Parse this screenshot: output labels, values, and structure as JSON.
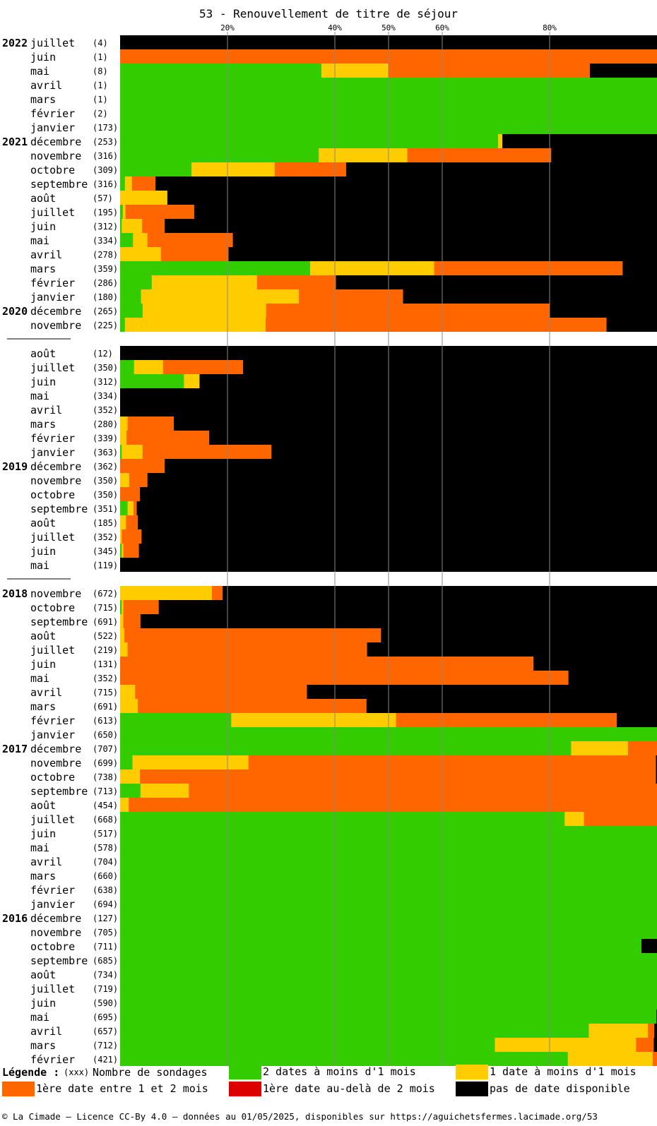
{
  "chart_data": {
    "type": "bar",
    "orientation": "horizontal-stacked-100",
    "title": "53 - Renouvellement de titre de séjour",
    "x_ticks": [
      "20%",
      "40%",
      "50%",
      "60%",
      "80%"
    ],
    "x_tick_values": [
      20,
      40,
      50,
      60,
      80
    ],
    "xlim": [
      0,
      100
    ],
    "colors": {
      "green": "#33cc00",
      "yellow": "#ffcc00",
      "orange": "#ff6600",
      "red": "#dd0000",
      "black": "#000000"
    },
    "series_order": [
      "green",
      "yellow",
      "orange",
      "red",
      "black"
    ],
    "groups": [
      {
        "rows": [
          {
            "year": "2022",
            "month": "juillet",
            "count": "(4)",
            "values": [
              0,
              0,
              0,
              0,
              100
            ]
          },
          {
            "year": "",
            "month": "juin",
            "count": "(1)",
            "values": [
              0,
              0,
              100,
              0,
              0
            ]
          },
          {
            "year": "",
            "month": "mai",
            "count": "(8)",
            "values": [
              37.5,
              12.5,
              37.5,
              0,
              12.5
            ]
          },
          {
            "year": "",
            "month": "avril",
            "count": "(1)",
            "values": [
              100,
              0,
              0,
              0,
              0
            ]
          },
          {
            "year": "",
            "month": "mars",
            "count": "(1)",
            "values": [
              100,
              0,
              0,
              0,
              0
            ]
          },
          {
            "year": "",
            "month": "février",
            "count": "(2)",
            "values": [
              100,
              0,
              0,
              0,
              0
            ]
          },
          {
            "year": "",
            "month": "janvier",
            "count": "(173)",
            "values": [
              100,
              0,
              0,
              0,
              0
            ]
          },
          {
            "year": "2021",
            "month": "décembre",
            "count": "(253)",
            "values": [
              70.4,
              0.8,
              0,
              0,
              28.8
            ]
          },
          {
            "year": "",
            "month": "novembre",
            "count": "(316)",
            "values": [
              37,
              16.5,
              26.8,
              0,
              19.7
            ]
          },
          {
            "year": "",
            "month": "octobre",
            "count": "(309)",
            "values": [
              13.3,
              15.5,
              13.3,
              0,
              57.9
            ]
          },
          {
            "year": "",
            "month": "septembre",
            "count": "(316)",
            "values": [
              0.9,
              1.3,
              4.4,
              0,
              93.4
            ]
          },
          {
            "year": "",
            "month": "août",
            "count": "(57)",
            "values": [
              0,
              8.8,
              0,
              0,
              91.2
            ]
          },
          {
            "year": "",
            "month": "juillet",
            "count": "(195)",
            "values": [
              0.5,
              0.5,
              12.8,
              0,
              86.2
            ]
          },
          {
            "year": "",
            "month": "juin",
            "count": "(312)",
            "values": [
              0.3,
              3.8,
              4.2,
              0,
              91.7
            ]
          },
          {
            "year": "",
            "month": "mai",
            "count": "(334)",
            "values": [
              2.4,
              2.7,
              15.9,
              0,
              79
            ]
          },
          {
            "year": "",
            "month": "avril",
            "count": "(278)",
            "values": [
              0,
              7.6,
              12.6,
              0,
              79.8
            ]
          },
          {
            "year": "",
            "month": "mars",
            "count": "(359)",
            "values": [
              35.4,
              23.1,
              35.1,
              0,
              6.4
            ]
          },
          {
            "year": "",
            "month": "février",
            "count": "(286)",
            "values": [
              5.9,
              19.6,
              14.7,
              0,
              59.8
            ]
          },
          {
            "year": "",
            "month": "janvier",
            "count": "(180)",
            "values": [
              3.9,
              29.4,
              19.4,
              0,
              47.3
            ]
          },
          {
            "year": "2020",
            "month": "décembre",
            "count": "(265)",
            "values": [
              4.2,
              23,
              52.8,
              0,
              20
            ]
          },
          {
            "year": "",
            "month": "novembre",
            "count": "(225)",
            "values": [
              0.9,
              26.2,
              63.5,
              0,
              9.4
            ]
          }
        ]
      },
      {
        "rows": [
          {
            "year": "",
            "month": "août",
            "count": "(12)",
            "values": [
              0,
              0,
              0,
              0,
              100
            ]
          },
          {
            "year": "",
            "month": "juillet",
            "count": "(350)",
            "values": [
              2.6,
              5.4,
              14.9,
              0,
              77.1
            ]
          },
          {
            "year": "",
            "month": "juin",
            "count": "(312)",
            "values": [
              11.9,
              2.9,
              0,
              0,
              85.2
            ]
          },
          {
            "year": "",
            "month": "mai",
            "count": "(334)",
            "values": [
              0,
              0,
              0,
              0,
              100
            ]
          },
          {
            "year": "",
            "month": "avril",
            "count": "(352)",
            "values": [
              0,
              0,
              0,
              0,
              100
            ]
          },
          {
            "year": "",
            "month": "mars",
            "count": "(280)",
            "values": [
              0,
              1.4,
              8.6,
              0,
              90
            ]
          },
          {
            "year": "",
            "month": "février",
            "count": "(339)",
            "values": [
              0,
              1.2,
              15.4,
              0,
              83.4
            ]
          },
          {
            "year": "",
            "month": "janvier",
            "count": "(363)",
            "values": [
              0.3,
              3.9,
              24,
              0,
              71.8
            ]
          },
          {
            "year": "2019",
            "month": "décembre",
            "count": "(362)",
            "values": [
              0,
              0,
              8.3,
              0,
              91.7
            ]
          },
          {
            "year": "",
            "month": "novembre",
            "count": "(350)",
            "values": [
              0,
              1.7,
              3.4,
              0,
              94.9
            ]
          },
          {
            "year": "",
            "month": "octobre",
            "count": "(350)",
            "values": [
              0,
              0,
              3.7,
              0,
              96.3
            ]
          },
          {
            "year": "",
            "month": "septembre",
            "count": "(351)",
            "values": [
              1.4,
              1.1,
              0.6,
              0,
              96.9
            ]
          },
          {
            "year": "",
            "month": "août",
            "count": "(185)",
            "values": [
              0,
              1.1,
              2.2,
              0,
              96.7
            ]
          },
          {
            "year": "",
            "month": "juillet",
            "count": "(352)",
            "values": [
              0,
              0.3,
              3.7,
              0,
              96
            ]
          },
          {
            "year": "",
            "month": "juin",
            "count": "(345)",
            "values": [
              0.3,
              0.3,
              2.9,
              0,
              96.5
            ]
          },
          {
            "year": "",
            "month": "mai",
            "count": "(119)",
            "values": [
              0,
              0,
              0,
              0,
              100
            ]
          }
        ]
      },
      {
        "rows": [
          {
            "year": "2018",
            "month": "novembre",
            "count": "(672)",
            "values": [
              0,
              17.1,
              2,
              0,
              80.9
            ]
          },
          {
            "year": "",
            "month": "octobre",
            "count": "(715)",
            "values": [
              0.3,
              0.3,
              6.6,
              0,
              92.8
            ]
          },
          {
            "year": "",
            "month": "septembre",
            "count": "(691)",
            "values": [
              0,
              0.6,
              3.2,
              0,
              96.2
            ]
          },
          {
            "year": "",
            "month": "août",
            "count": "(522)",
            "values": [
              0,
              0.8,
              47.8,
              0,
              51.4
            ]
          },
          {
            "year": "",
            "month": "juillet",
            "count": "(219)",
            "values": [
              0,
              1.4,
              44.6,
              0,
              54
            ]
          },
          {
            "year": "",
            "month": "juin",
            "count": "(131)",
            "values": [
              0,
              0,
              77,
              0,
              23
            ]
          },
          {
            "year": "",
            "month": "mai",
            "count": "(352)",
            "values": [
              0,
              0,
              83.5,
              0,
              16.5
            ]
          },
          {
            "year": "",
            "month": "avril",
            "count": "(715)",
            "values": [
              0,
              2.8,
              32,
              0,
              65.2
            ]
          },
          {
            "year": "",
            "month": "mars",
            "count": "(691)",
            "values": [
              0,
              3.3,
              42.6,
              0,
              54.1
            ]
          },
          {
            "year": "",
            "month": "février",
            "count": "(613)",
            "values": [
              20.7,
              30.7,
              41.1,
              0,
              7.5
            ]
          },
          {
            "year": "",
            "month": "janvier",
            "count": "(650)",
            "values": [
              100,
              0,
              0,
              0,
              0
            ]
          },
          {
            "year": "2017",
            "month": "décembre",
            "count": "(707)",
            "values": [
              84,
              10.6,
              5.4,
              0,
              0
            ]
          },
          {
            "year": "",
            "month": "novembre",
            "count": "(699)",
            "values": [
              2.3,
              21.6,
              75.9,
              0,
              0.2
            ]
          },
          {
            "year": "",
            "month": "octobre",
            "count": "(738)",
            "values": [
              0,
              3.7,
              96.1,
              0,
              0.2
            ]
          },
          {
            "year": "",
            "month": "septembre",
            "count": "(713)",
            "values": [
              3.8,
              9,
              87.2,
              0,
              0
            ]
          },
          {
            "year": "",
            "month": "août",
            "count": "(454)",
            "values": [
              0,
              1.6,
              98.4,
              0,
              0
            ]
          },
          {
            "year": "",
            "month": "juillet",
            "count": "(668)",
            "values": [
              82.8,
              3.6,
              13.6,
              0,
              0
            ]
          },
          {
            "year": "",
            "month": "juin",
            "count": "(517)",
            "values": [
              100,
              0,
              0,
              0,
              0
            ]
          },
          {
            "year": "",
            "month": "mai",
            "count": "(578)",
            "values": [
              100,
              0,
              0,
              0,
              0
            ]
          },
          {
            "year": "",
            "month": "avril",
            "count": "(704)",
            "values": [
              100,
              0,
              0,
              0,
              0
            ]
          },
          {
            "year": "",
            "month": "mars",
            "count": "(660)",
            "values": [
              100,
              0,
              0,
              0,
              0
            ]
          },
          {
            "year": "",
            "month": "février",
            "count": "(638)",
            "values": [
              100,
              0,
              0,
              0,
              0
            ]
          },
          {
            "year": "",
            "month": "janvier",
            "count": "(694)",
            "values": [
              100,
              0,
              0,
              0,
              0
            ]
          },
          {
            "year": "2016",
            "month": "décembre",
            "count": "(127)",
            "values": [
              100,
              0,
              0,
              0,
              0
            ]
          },
          {
            "year": "",
            "month": "novembre",
            "count": "(705)",
            "values": [
              100,
              0,
              0,
              0,
              0
            ]
          },
          {
            "year": "",
            "month": "octobre",
            "count": "(711)",
            "values": [
              97.1,
              0,
              0,
              0,
              2.9
            ]
          },
          {
            "year": "",
            "month": "septembre",
            "count": "(685)",
            "values": [
              100,
              0,
              0,
              0,
              0
            ]
          },
          {
            "year": "",
            "month": "août",
            "count": "(734)",
            "values": [
              100,
              0,
              0,
              0,
              0
            ]
          },
          {
            "year": "",
            "month": "juillet",
            "count": "(719)",
            "values": [
              100,
              0,
              0,
              0,
              0
            ]
          },
          {
            "year": "",
            "month": "juin",
            "count": "(590)",
            "values": [
              100,
              0,
              0,
              0,
              0
            ]
          },
          {
            "year": "",
            "month": "mai",
            "count": "(695)",
            "values": [
              99.9,
              0,
              0,
              0,
              0.1
            ]
          },
          {
            "year": "",
            "month": "avril",
            "count": "(657)",
            "values": [
              87.3,
              11,
              1.2,
              0,
              0.5
            ]
          },
          {
            "year": "",
            "month": "mars",
            "count": "(712)",
            "values": [
              69.8,
              26.3,
              3.3,
              0,
              0.6
            ]
          },
          {
            "year": "",
            "month": "février",
            "count": "(421)",
            "values": [
              83.4,
              15.8,
              0.8,
              0,
              0
            ]
          }
        ]
      }
    ]
  },
  "legend": {
    "title": "Légende :",
    "count_marker": "(xxx)",
    "count_label": "Nombre de sondages",
    "items": [
      {
        "color": "#33cc00",
        "label": "2 dates à moins d'1 mois"
      },
      {
        "color": "#ffcc00",
        "label": "1 date à moins d'1 mois"
      },
      {
        "color": "#ff6600",
        "label": "1ère date entre 1 et 2 mois"
      },
      {
        "color": "#dd0000",
        "label": "1ère date au-delà de 2 mois"
      },
      {
        "color": "#000000",
        "label": "pas de date disponible"
      }
    ]
  },
  "footer": "© La Cimade – Licence CC-By 4.0 – données au 01/05/2025, disponibles sur https://aguichetsfermes.lacimade.org/53"
}
